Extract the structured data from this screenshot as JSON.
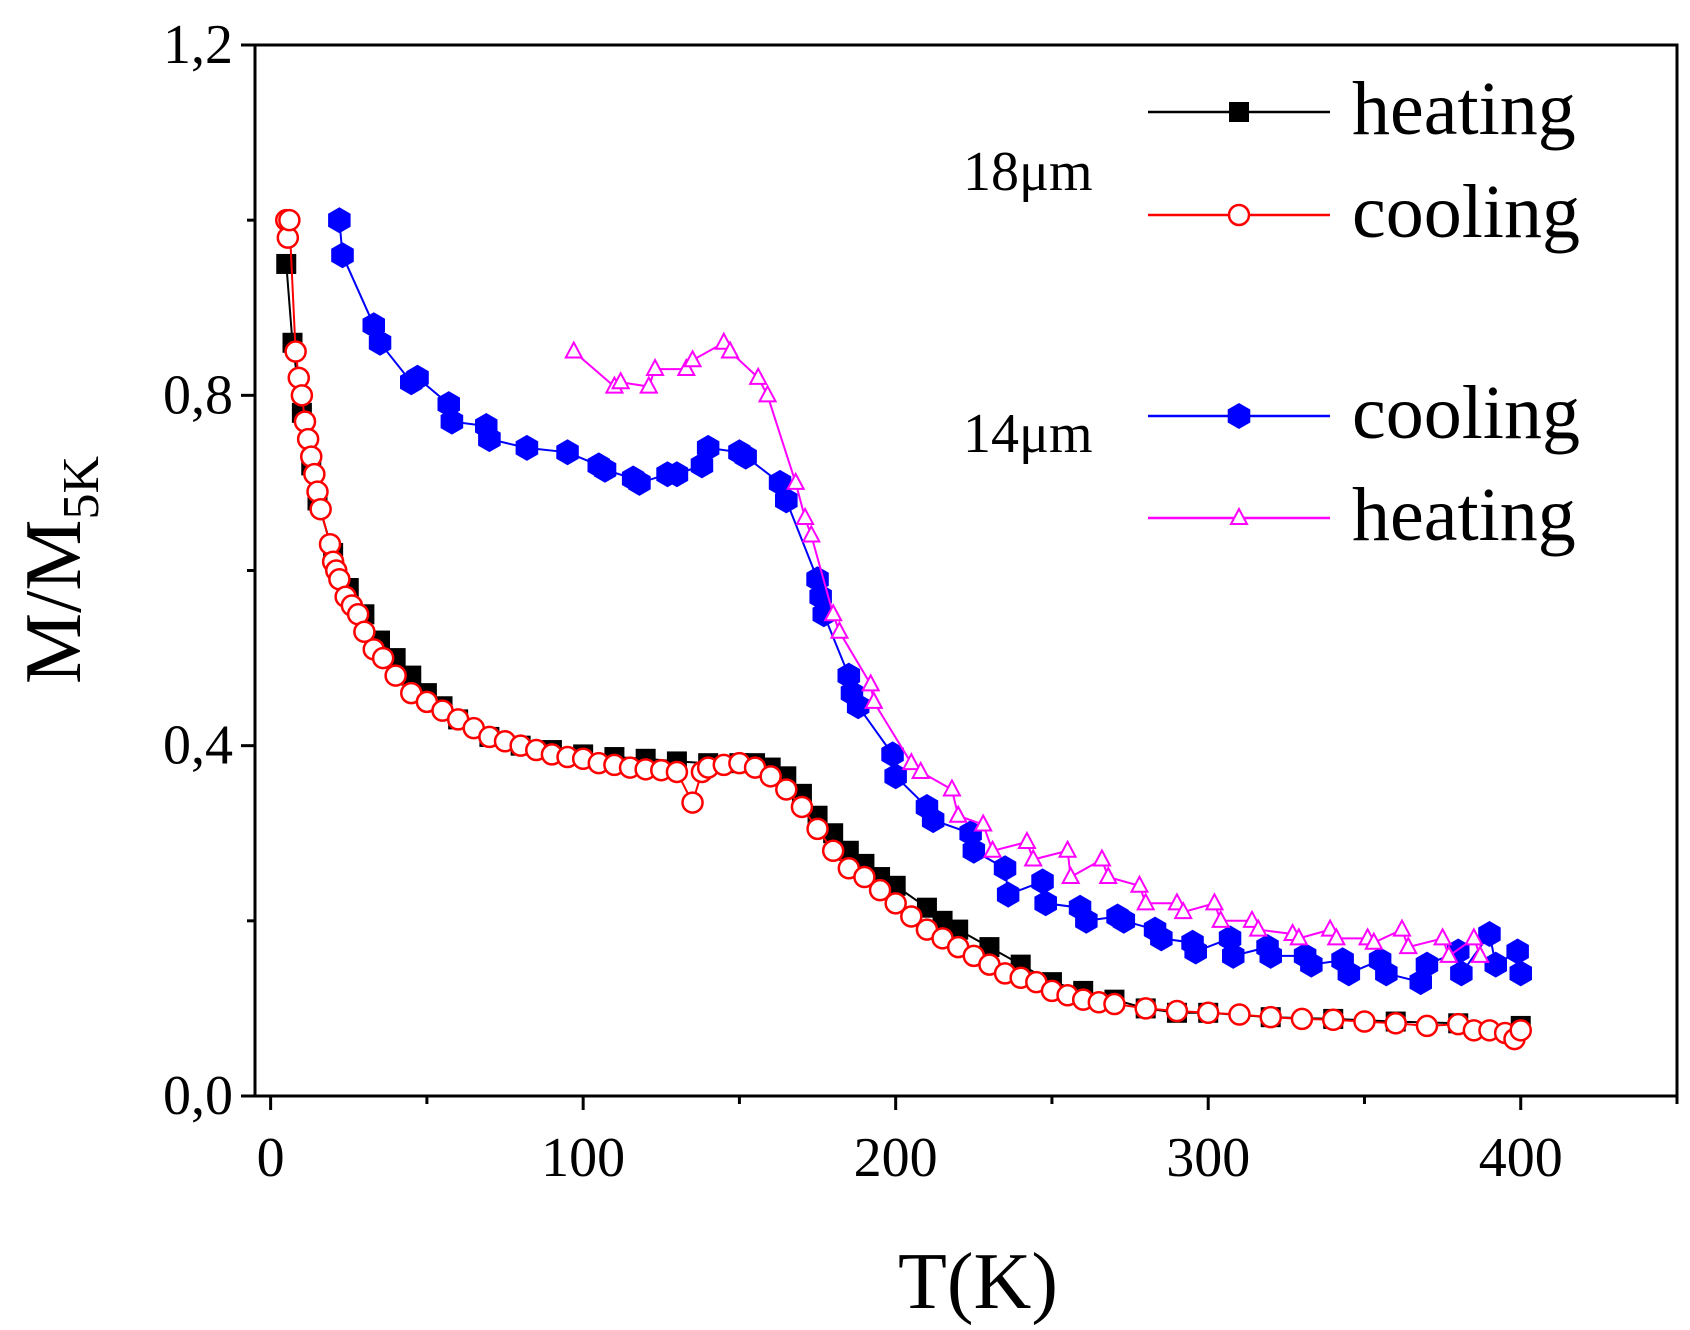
{
  "chart_data": {
    "type": "scatter",
    "title": "",
    "xlabel": "T(K)",
    "ylabel_main": "M/M",
    "ylabel_sub": "5K",
    "xlim": [
      -5,
      450
    ],
    "ylim": [
      0,
      1.2
    ],
    "x_ticks": [
      0,
      100,
      200,
      300,
      400
    ],
    "x_tick_labels": [
      "0",
      "100",
      "200",
      "300",
      "400"
    ],
    "x_minor_ticks": [
      50,
      150,
      250,
      350,
      450
    ],
    "y_ticks": [
      0,
      0.4,
      0.8,
      1.2
    ],
    "y_tick_labels": [
      "0,0",
      "0,4",
      "0,8",
      "1,2"
    ],
    "y_minor_ticks": [
      0.2,
      0.6,
      1.0
    ],
    "grid": false,
    "legend_position": "top-right",
    "group_labels": [
      "18μm",
      "14μm"
    ],
    "series": [
      {
        "name": "heating",
        "group": "18μm",
        "color": "#000000",
        "marker": "square",
        "x": [
          5,
          7,
          10,
          13,
          15,
          20,
          25,
          30,
          35,
          40,
          45,
          50,
          55,
          60,
          70,
          80,
          90,
          100,
          110,
          120,
          130,
          140,
          150,
          155,
          160,
          165,
          170,
          175,
          180,
          185,
          190,
          195,
          200,
          210,
          215,
          220,
          230,
          240,
          250,
          260,
          270,
          280,
          290,
          300,
          320,
          340,
          360,
          380,
          400
        ],
        "y": [
          0.95,
          0.86,
          0.78,
          0.72,
          0.68,
          0.62,
          0.58,
          0.55,
          0.52,
          0.5,
          0.48,
          0.46,
          0.445,
          0.43,
          0.41,
          0.4,
          0.395,
          0.39,
          0.387,
          0.385,
          0.382,
          0.38,
          0.38,
          0.38,
          0.375,
          0.365,
          0.345,
          0.32,
          0.3,
          0.28,
          0.265,
          0.25,
          0.24,
          0.215,
          0.2,
          0.19,
          0.17,
          0.15,
          0.13,
          0.12,
          0.11,
          0.1,
          0.095,
          0.095,
          0.09,
          0.088,
          0.085,
          0.083,
          0.08
        ]
      },
      {
        "name": "cooling",
        "group": "18μm",
        "color": "#ff0000",
        "marker": "circle",
        "x": [
          5,
          5.5,
          6,
          8,
          9,
          10,
          11,
          12,
          13,
          14,
          15,
          16,
          19,
          20,
          21,
          22,
          24,
          26,
          28,
          30,
          33,
          36,
          40,
          45,
          50,
          55,
          60,
          65,
          70,
          75,
          80,
          85,
          90,
          95,
          100,
          105,
          110,
          115,
          120,
          125,
          130,
          135,
          138,
          140,
          145,
          150,
          155,
          160,
          165,
          170,
          175,
          180,
          185,
          190,
          195,
          200,
          205,
          210,
          215,
          220,
          225,
          230,
          235,
          240,
          245,
          250,
          255,
          260,
          265,
          270,
          280,
          290,
          300,
          310,
          320,
          330,
          340,
          350,
          360,
          370,
          380,
          385,
          390,
          395,
          398,
          400
        ],
        "y": [
          1.0,
          0.98,
          1.0,
          0.85,
          0.82,
          0.8,
          0.77,
          0.75,
          0.73,
          0.71,
          0.69,
          0.67,
          0.63,
          0.61,
          0.6,
          0.59,
          0.57,
          0.56,
          0.55,
          0.53,
          0.51,
          0.5,
          0.48,
          0.46,
          0.45,
          0.44,
          0.43,
          0.42,
          0.41,
          0.405,
          0.4,
          0.395,
          0.39,
          0.387,
          0.385,
          0.38,
          0.378,
          0.375,
          0.373,
          0.372,
          0.37,
          0.335,
          0.37,
          0.375,
          0.378,
          0.38,
          0.375,
          0.365,
          0.35,
          0.33,
          0.305,
          0.28,
          0.26,
          0.25,
          0.235,
          0.22,
          0.205,
          0.19,
          0.18,
          0.17,
          0.16,
          0.15,
          0.14,
          0.135,
          0.13,
          0.12,
          0.115,
          0.11,
          0.107,
          0.105,
          0.1,
          0.097,
          0.095,
          0.093,
          0.09,
          0.088,
          0.087,
          0.085,
          0.083,
          0.08,
          0.082,
          0.075,
          0.075,
          0.072,
          0.065,
          0.075
        ]
      },
      {
        "name": "cooling",
        "group": "14μm",
        "color": "#0000ff",
        "marker": "hexagon",
        "x": [
          22,
          23,
          33,
          35,
          45,
          47,
          57,
          58,
          69,
          70,
          82,
          95,
          105,
          107,
          116,
          118,
          127,
          130,
          138,
          140,
          150,
          152,
          163,
          165,
          175,
          176,
          177,
          185,
          186,
          188,
          199,
          200,
          210,
          212,
          224,
          225,
          235,
          236,
          247,
          248,
          259,
          261,
          271,
          273,
          283,
          285,
          295,
          296,
          307,
          308,
          319,
          320,
          331,
          333,
          343,
          345,
          355,
          357,
          368,
          370,
          380,
          381,
          390,
          392,
          399,
          400
        ],
        "y": [
          1.0,
          0.96,
          0.88,
          0.86,
          0.815,
          0.82,
          0.79,
          0.77,
          0.765,
          0.75,
          0.74,
          0.735,
          0.72,
          0.715,
          0.705,
          0.7,
          0.71,
          0.71,
          0.72,
          0.74,
          0.735,
          0.73,
          0.7,
          0.68,
          0.59,
          0.57,
          0.55,
          0.48,
          0.46,
          0.445,
          0.39,
          0.365,
          0.33,
          0.315,
          0.3,
          0.28,
          0.26,
          0.23,
          0.245,
          0.22,
          0.215,
          0.2,
          0.205,
          0.2,
          0.19,
          0.18,
          0.175,
          0.165,
          0.18,
          0.16,
          0.17,
          0.16,
          0.16,
          0.15,
          0.155,
          0.14,
          0.155,
          0.14,
          0.13,
          0.15,
          0.165,
          0.14,
          0.185,
          0.15,
          0.165,
          0.14
        ]
      },
      {
        "name": "heating",
        "group": "14μm",
        "color": "#ff00ff",
        "marker": "triangle",
        "x": [
          97,
          110,
          112,
          121,
          123,
          133,
          135,
          145,
          147,
          156,
          159,
          168,
          171,
          173,
          180,
          182,
          192,
          193,
          205,
          208,
          218,
          220,
          228,
          231,
          242,
          244,
          255,
          256,
          266,
          268,
          278,
          280,
          290,
          292,
          302,
          304,
          314,
          316,
          327,
          329,
          339,
          341,
          351,
          353,
          362,
          364,
          375,
          377,
          385,
          387
        ],
        "y": [
          0.85,
          0.81,
          0.815,
          0.81,
          0.83,
          0.83,
          0.84,
          0.86,
          0.85,
          0.82,
          0.8,
          0.7,
          0.66,
          0.64,
          0.55,
          0.53,
          0.47,
          0.45,
          0.38,
          0.37,
          0.35,
          0.32,
          0.31,
          0.28,
          0.29,
          0.27,
          0.28,
          0.25,
          0.27,
          0.25,
          0.24,
          0.22,
          0.22,
          0.21,
          0.22,
          0.2,
          0.2,
          0.19,
          0.185,
          0.18,
          0.19,
          0.18,
          0.18,
          0.175,
          0.19,
          0.17,
          0.18,
          0.16,
          0.18,
          0.16
        ]
      }
    ]
  }
}
